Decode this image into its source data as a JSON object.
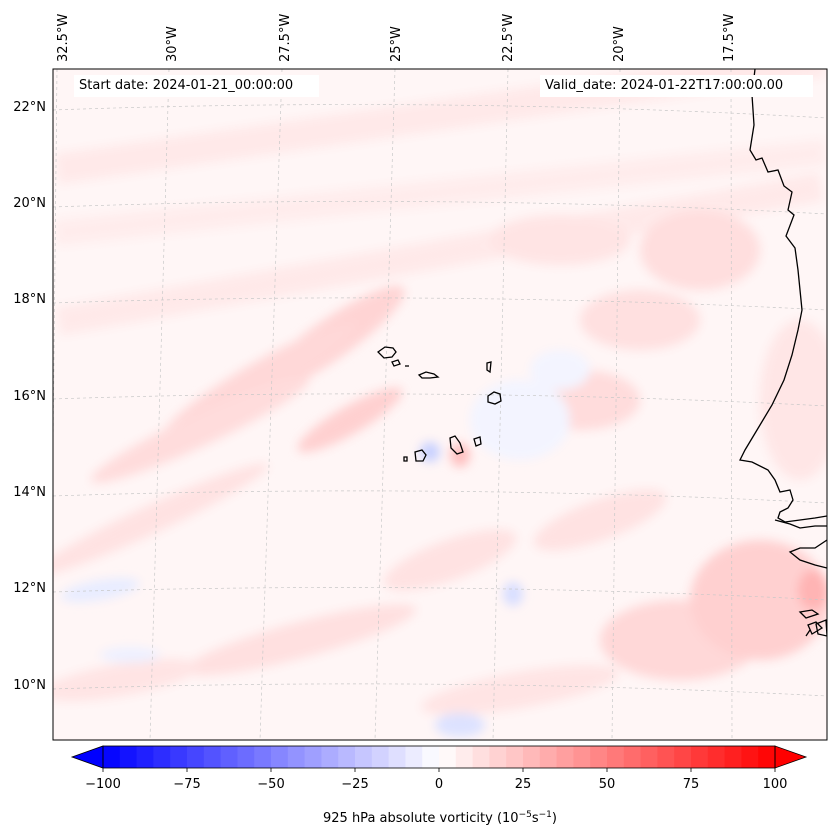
{
  "header": {
    "start_date": "Start date: 2024-01-21_00:00:00",
    "valid_date": "Valid_date: 2024-01-22T17:00:00.00"
  },
  "axes": {
    "lon_labels": [
      "32.5°W",
      "30°W",
      "27.5°W",
      "25°W",
      "22.5°W",
      "20°W",
      "17.5°W"
    ],
    "lat_labels": [
      "22°N",
      "20°N",
      "18°N",
      "16°N",
      "14°N",
      "12°N",
      "10°N"
    ]
  },
  "colorbar": {
    "label_prefix": "925 hPa absolute vorticity (10",
    "label_exp1": "−5",
    "label_mid": "s",
    "label_exp2": "−1",
    "label_suffix": ")",
    "ticks": [
      "−100",
      "−75",
      "−50",
      "−25",
      "0",
      "25",
      "50",
      "75",
      "100"
    ],
    "min": -100,
    "max": 100
  },
  "colors": {
    "negative": "#0000ff",
    "positive": "#ff0000",
    "neutral": "#ffffff",
    "coastline": "#000000",
    "gridline": "#c8c8c8"
  }
}
